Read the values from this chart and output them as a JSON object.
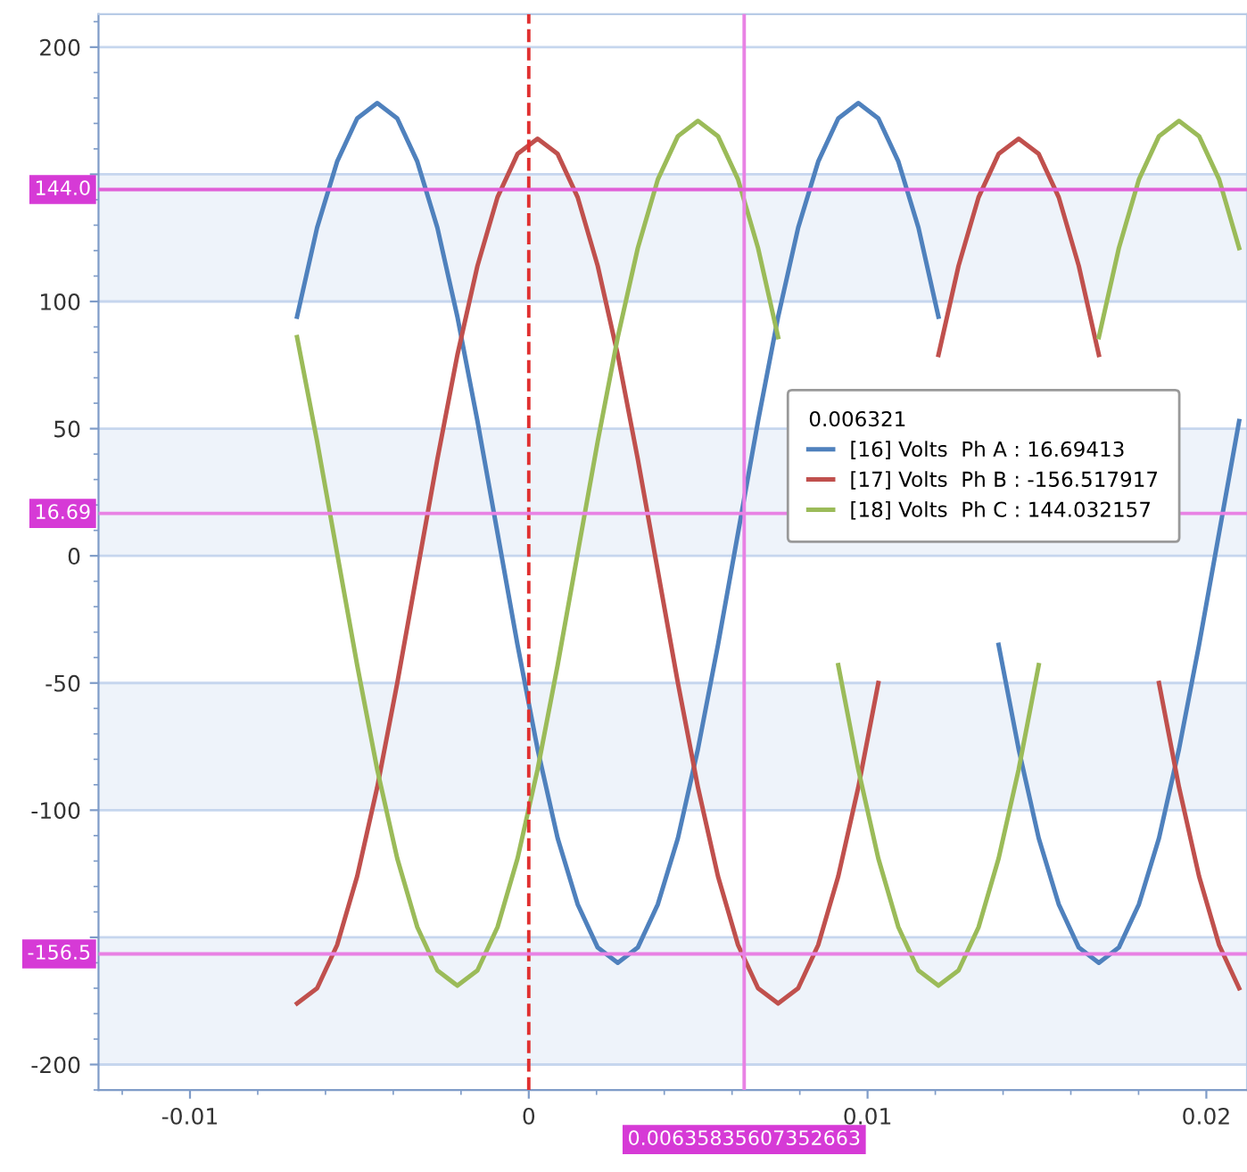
{
  "chart_data": {
    "type": "line",
    "x": [
      -0.00684,
      -0.006248,
      -0.005657,
      -0.005065,
      -0.004473,
      -0.003882,
      -0.00329,
      -0.002698,
      -0.002107,
      -0.001515,
      -0.000923,
      -0.000332,
      0.00026,
      0.000852,
      0.001443,
      0.002035,
      0.002627,
      0.003218,
      0.00381,
      0.004402,
      0.004993,
      0.005585,
      0.006177,
      0.006768,
      0.00736,
      0.007952,
      0.008543,
      0.009135,
      0.009727,
      0.010318,
      0.01091,
      0.011502,
      0.012093,
      0.012685,
      0.013277,
      0.013868,
      0.01446,
      0.015052,
      0.015643,
      0.016235,
      0.016827,
      0.017418,
      0.01801,
      0.018602,
      0.019193,
      0.019785,
      0.020377,
      0.020968
    ],
    "series": [
      {
        "name": "[16] Volts  Ph A : 16.69413",
        "color": "#4f81bd",
        "values": [
          94,
          129,
          155,
          172,
          178,
          172,
          155,
          129,
          94,
          53,
          9,
          -35,
          -76,
          -111,
          -137,
          -154,
          -160,
          -154,
          -137,
          -111,
          -76,
          -35,
          9,
          53,
          94,
          129,
          155,
          172,
          178,
          172,
          155,
          129,
          94,
          null,
          null,
          -35,
          -76,
          -111,
          -137,
          -154,
          -160,
          -154,
          -137,
          -111,
          -76,
          -35,
          9,
          53
        ]
      },
      {
        "name": "[17] Volts  Ph B : -156.517917",
        "color": "#c0504d",
        "values": [
          -176,
          -170,
          -153,
          -126,
          -91,
          -50,
          -6,
          38,
          79,
          114,
          141,
          158,
          164,
          158,
          141,
          114,
          79,
          38,
          -6,
          -50,
          -91,
          -126,
          -153,
          -170,
          -176,
          -170,
          -153,
          -126,
          -91,
          -50,
          null,
          null,
          79,
          114,
          141,
          158,
          164,
          158,
          141,
          114,
          79,
          null,
          null,
          -50,
          -91,
          -126,
          -153,
          -170
        ]
      },
      {
        "name": "[18] Volts  Ph C : 144.032157",
        "color": "#9bbb59",
        "values": [
          86,
          45,
          1,
          -43,
          -84,
          -119,
          -146,
          -163,
          -169,
          -163,
          -146,
          -119,
          -84,
          -43,
          1,
          45,
          86,
          121,
          148,
          165,
          171,
          165,
          148,
          121,
          86,
          null,
          null,
          -43,
          -84,
          -119,
          -146,
          -163,
          -169,
          -163,
          -146,
          -119,
          -84,
          -43,
          null,
          null,
          86,
          121,
          148,
          165,
          171,
          165,
          148,
          121
        ]
      }
    ],
    "legend_title": "0.006321",
    "legend": "right",
    "xlim": [
      -0.0127,
      0.0212
    ],
    "xticks": [
      -0.01,
      0,
      0.01,
      0.02
    ],
    "ylim": [
      -210,
      213
    ],
    "yticks": [
      -200,
      {
        "value": -150,
        "label": null
      },
      -100,
      -50,
      0,
      50,
      100,
      {
        "value": 150,
        "label": null
      },
      200
    ],
    "grid": "y",
    "ref_lines": [
      {
        "axis": "x",
        "value": 0,
        "color": "#e03030",
        "line_style": "dashed"
      },
      {
        "axis": "x",
        "value": 0.00635835607352663,
        "label": "0.00635835607352663",
        "color": "#e882e4"
      },
      {
        "axis": "y",
        "value": 144.0,
        "label": "144.0",
        "color": "#e060d8"
      },
      {
        "axis": "y",
        "value": 16.69,
        "label": "16.69",
        "color": "#e882e4"
      },
      {
        "axis": "y",
        "value": -156.5,
        "label": "-156.5",
        "color": "#e882e4"
      }
    ]
  }
}
